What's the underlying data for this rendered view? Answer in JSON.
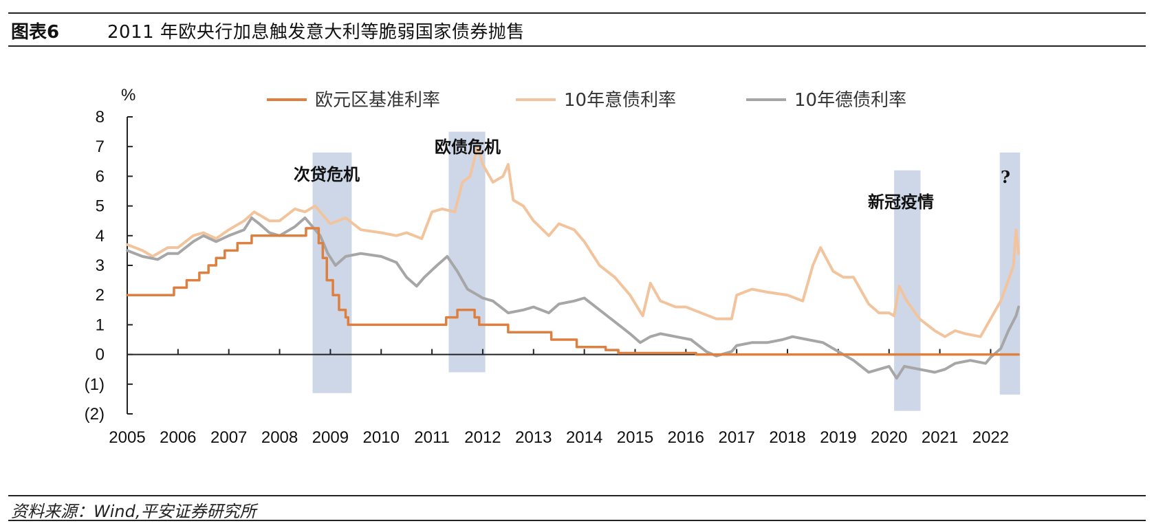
{
  "header": {
    "figure_label": "图表6",
    "title": "2011 年欧央行加息触发意大利等脆弱国家债券抛售"
  },
  "source": "资料来源：Wind,平安证券研究所",
  "chart_data": {
    "type": "line",
    "ylabel": "%",
    "ylim": [
      -2,
      8
    ],
    "xlim": [
      2005,
      2022.6
    ],
    "x_ticks": [
      "2005",
      "2006",
      "2007",
      "2008",
      "2009",
      "2010",
      "2011",
      "2012",
      "2013",
      "2014",
      "2015",
      "2016",
      "2017",
      "2018",
      "2019",
      "2020",
      "2021",
      "2022"
    ],
    "y_ticks": [
      {
        "value": 8,
        "label": "8"
      },
      {
        "value": 7,
        "label": "7"
      },
      {
        "value": 6,
        "label": "6"
      },
      {
        "value": 5,
        "label": "5"
      },
      {
        "value": 4,
        "label": "4"
      },
      {
        "value": 3,
        "label": "3"
      },
      {
        "value": 2,
        "label": "2"
      },
      {
        "value": 1,
        "label": "1"
      },
      {
        "value": 0,
        "label": "0"
      },
      {
        "value": -1,
        "label": "(1)"
      },
      {
        "value": -2,
        "label": "(2)"
      }
    ],
    "negative_tick_color": "#e8231c",
    "legend_position": "top",
    "shaded_periods": [
      {
        "label": "次贷危机",
        "start": 2008.65,
        "end": 2009.42,
        "ymin": -1.3,
        "ymax": 6.8
      },
      {
        "label": "欧债危机",
        "start": 2011.33,
        "end": 2012.05,
        "ymin": -0.6,
        "ymax": 7.5
      },
      {
        "label": "新冠疫情",
        "start": 2020.1,
        "end": 2020.62,
        "ymin": -1.9,
        "ymax": 6.2
      },
      {
        "label": "?",
        "start": 2022.18,
        "end": 2022.58,
        "ymin": -1.35,
        "ymax": 6.8
      }
    ],
    "shade_color": "#c9d3e6",
    "series": [
      {
        "name": "欧元区基准利率",
        "color": "#dd7f3e",
        "step": true,
        "x": [
          2005.0,
          2005.92,
          2006.17,
          2006.42,
          2006.6,
          2006.75,
          2006.92,
          2007.17,
          2007.45,
          2008.52,
          2008.77,
          2008.85,
          2008.93,
          2009.05,
          2009.17,
          2009.3,
          2009.35,
          2011.28,
          2011.5,
          2011.84,
          2011.93,
          2012.5,
          2013.35,
          2013.85,
          2014.42,
          2014.67,
          2016.2,
          2022.55
        ],
        "values": [
          2.0,
          2.25,
          2.5,
          2.75,
          3.0,
          3.25,
          3.5,
          3.75,
          4.0,
          4.25,
          3.75,
          3.25,
          2.5,
          2.0,
          1.5,
          1.25,
          1.0,
          1.25,
          1.5,
          1.25,
          1.0,
          0.75,
          0.5,
          0.25,
          0.15,
          0.05,
          0.0,
          0.0
        ]
      },
      {
        "name": "10年意债利率",
        "color": "#f2c49e",
        "x": [
          2005.0,
          2005.3,
          2005.5,
          2005.8,
          2006.0,
          2006.3,
          2006.5,
          2006.75,
          2007.0,
          2007.3,
          2007.5,
          2007.8,
          2008.0,
          2008.3,
          2008.5,
          2008.7,
          2008.9,
          2009.0,
          2009.3,
          2009.6,
          2010.0,
          2010.3,
          2010.5,
          2010.8,
          2011.0,
          2011.2,
          2011.45,
          2011.6,
          2011.75,
          2011.9,
          2012.0,
          2012.2,
          2012.4,
          2012.5,
          2012.6,
          2012.8,
          2013.0,
          2013.3,
          2013.5,
          2013.8,
          2014.0,
          2014.3,
          2014.6,
          2014.9,
          2015.15,
          2015.3,
          2015.5,
          2015.8,
          2016.0,
          2016.3,
          2016.6,
          2016.9,
          2017.0,
          2017.3,
          2017.6,
          2018.0,
          2018.3,
          2018.5,
          2018.65,
          2018.9,
          2019.1,
          2019.3,
          2019.6,
          2019.8,
          2020.0,
          2020.1,
          2020.2,
          2020.35,
          2020.6,
          2020.9,
          2021.1,
          2021.3,
          2021.5,
          2021.8,
          2022.0,
          2022.2,
          2022.35,
          2022.45,
          2022.5,
          2022.55
        ],
        "values": [
          3.7,
          3.5,
          3.3,
          3.6,
          3.6,
          4.0,
          4.1,
          3.9,
          4.2,
          4.5,
          4.8,
          4.5,
          4.5,
          4.9,
          4.8,
          5.0,
          4.6,
          4.4,
          4.6,
          4.2,
          4.1,
          4.0,
          4.1,
          3.9,
          4.8,
          4.9,
          4.8,
          5.8,
          6.0,
          7.0,
          6.4,
          5.8,
          6.0,
          6.4,
          5.2,
          5.0,
          4.5,
          4.0,
          4.4,
          4.2,
          3.8,
          3.0,
          2.6,
          2.0,
          1.3,
          2.4,
          1.8,
          1.6,
          1.6,
          1.4,
          1.2,
          1.2,
          2.0,
          2.2,
          2.1,
          2.0,
          1.8,
          3.0,
          3.6,
          2.8,
          2.6,
          2.6,
          1.7,
          1.4,
          1.4,
          1.3,
          2.3,
          1.8,
          1.2,
          0.8,
          0.6,
          0.8,
          0.7,
          0.6,
          1.2,
          1.8,
          2.5,
          3.0,
          4.2,
          3.4
        ]
      },
      {
        "name": "10年德债利率",
        "color": "#a6a6a6",
        "x": [
          2005.0,
          2005.3,
          2005.6,
          2005.8,
          2006.0,
          2006.3,
          2006.5,
          2006.75,
          2007.0,
          2007.3,
          2007.45,
          2007.6,
          2007.8,
          2008.0,
          2008.3,
          2008.5,
          2008.6,
          2008.8,
          2008.95,
          2009.1,
          2009.3,
          2009.6,
          2010.0,
          2010.3,
          2010.5,
          2010.7,
          2010.85,
          2011.1,
          2011.3,
          2011.5,
          2011.7,
          2011.9,
          2012.0,
          2012.2,
          2012.5,
          2012.8,
          2013.0,
          2013.3,
          2013.5,
          2013.8,
          2014.0,
          2014.3,
          2014.6,
          2014.9,
          2015.1,
          2015.3,
          2015.5,
          2015.8,
          2016.1,
          2016.4,
          2016.6,
          2016.9,
          2017.0,
          2017.3,
          2017.6,
          2017.9,
          2018.1,
          2018.4,
          2018.7,
          2019.0,
          2019.3,
          2019.6,
          2019.8,
          2020.0,
          2020.15,
          2020.3,
          2020.6,
          2020.9,
          2021.1,
          2021.3,
          2021.6,
          2021.9,
          2022.0,
          2022.2,
          2022.35,
          2022.5,
          2022.55
        ],
        "values": [
          3.5,
          3.3,
          3.2,
          3.4,
          3.4,
          3.8,
          4.0,
          3.8,
          4.0,
          4.2,
          4.6,
          4.4,
          4.1,
          4.0,
          4.3,
          4.6,
          4.4,
          4.0,
          3.4,
          3.0,
          3.3,
          3.4,
          3.3,
          3.1,
          2.6,
          2.3,
          2.6,
          3.0,
          3.3,
          2.8,
          2.2,
          2.0,
          1.9,
          1.8,
          1.4,
          1.5,
          1.6,
          1.4,
          1.7,
          1.8,
          1.9,
          1.5,
          1.1,
          0.7,
          0.4,
          0.6,
          0.7,
          0.6,
          0.5,
          0.1,
          -0.05,
          0.1,
          0.3,
          0.4,
          0.4,
          0.5,
          0.6,
          0.5,
          0.4,
          0.1,
          -0.2,
          -0.6,
          -0.5,
          -0.4,
          -0.8,
          -0.4,
          -0.5,
          -0.6,
          -0.5,
          -0.3,
          -0.2,
          -0.3,
          -0.1,
          0.2,
          0.8,
          1.3,
          1.6
        ]
      }
    ]
  }
}
